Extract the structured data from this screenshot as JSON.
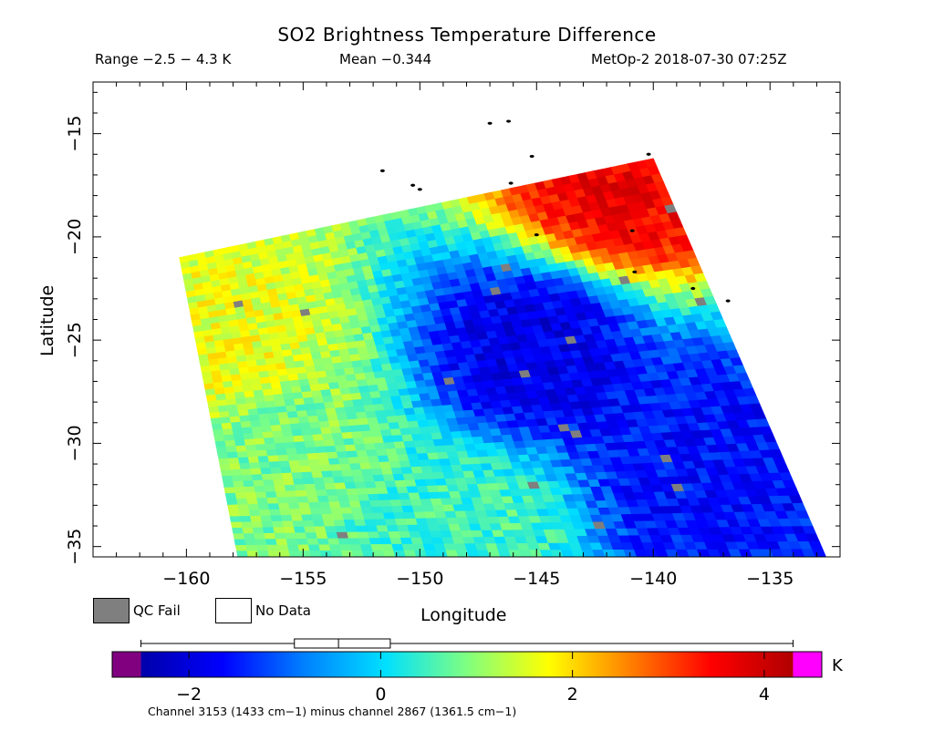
{
  "header": {
    "title": "SO2 Brightness Temperature Difference",
    "range_text": "Range −2.5 − 4.3 K",
    "mean_text": "Mean −0.344",
    "satellite_time": "MetOp-2 2018-07-30 07:25Z"
  },
  "legend": {
    "qc_fail": "QC Fail",
    "no_data": "No Data",
    "qc_fail_color": "#7f7f7f",
    "no_data_color": "#ffffff"
  },
  "colorbar": {
    "unit": "K",
    "min": -2.8,
    "max": 4.6,
    "data_range": [
      -2.5,
      4.3
    ],
    "box_range": [
      -0.9,
      0.1
    ],
    "box_median": -0.44,
    "ticks": [
      -2,
      0,
      2,
      4
    ],
    "tick_labels": [
      "−2",
      "0",
      "2",
      "4"
    ],
    "under_color": "#800080",
    "over_color": "#ff00ff",
    "stops": [
      "#0000aa",
      "#0000ff",
      "#0080ff",
      "#00e0ff",
      "#80ff80",
      "#ffff00",
      "#ff8000",
      "#ff0000",
      "#b00000"
    ]
  },
  "footnote": "Channel 3153 (1433 cm−1) minus channel 2867 (1361.5 cm−1)",
  "chart_data": {
    "type": "heatmap",
    "title": "SO2 Brightness Temperature Difference",
    "xlabel": "Longitude",
    "ylabel": "Latitude",
    "xlim": [
      -164,
      -132
    ],
    "ylim": [
      -35.5,
      -12.5
    ],
    "x_ticks": [
      -160,
      -155,
      -150,
      -145,
      -140,
      -135
    ],
    "x_tick_labels": [
      "−160",
      "−155",
      "−150",
      "−145",
      "−140",
      "−135"
    ],
    "y_ticks": [
      -15,
      -20,
      -25,
      -30,
      -35
    ],
    "y_tick_labels": [
      "−15",
      "−20",
      "−25",
      "−30",
      "−35"
    ],
    "swath_corners": [
      [
        -160.3,
        -21.0
      ],
      [
        -140.0,
        -16.2
      ],
      [
        -132.6,
        -35.5
      ],
      [
        -157.8,
        -35.5
      ]
    ],
    "value_range": [
      -2.5,
      4.3
    ],
    "mean": -0.344,
    "features": [
      {
        "region": "northwest edge",
        "lon": -158.0,
        "lat": -25.5,
        "value": 1.6
      },
      {
        "region": "west side",
        "lon": -156.0,
        "lat": -30.0,
        "value": 0.9
      },
      {
        "region": "central band",
        "lon": -145.0,
        "lat": -25.5,
        "value": -1.9
      },
      {
        "region": "northeast corner",
        "lon": -141.5,
        "lat": -17.5,
        "value": 3.6
      },
      {
        "region": "southeast",
        "lon": -138.0,
        "lat": -31.0,
        "value": -1.6
      },
      {
        "region": "south",
        "lon": -148.0,
        "lat": -34.0,
        "value": 0.5
      }
    ]
  }
}
